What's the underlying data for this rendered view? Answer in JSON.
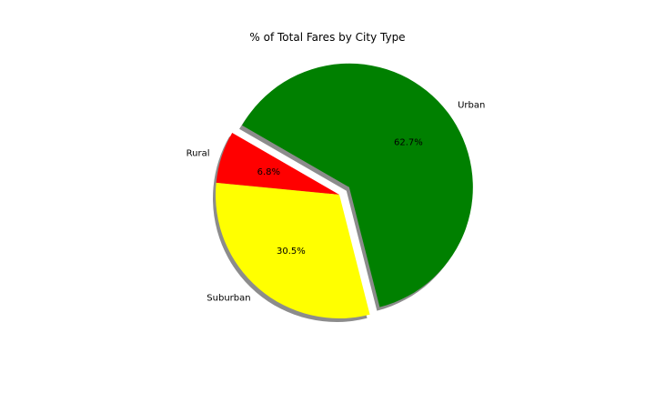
{
  "chart_data": {
    "type": "pie",
    "title": "% of Total Fares by City Type",
    "categories": [
      "Rural",
      "Suburban",
      "Urban"
    ],
    "values": [
      6.8,
      30.5,
      62.7
    ],
    "percent_labels": [
      "6.8%",
      "30.5%",
      "62.7%"
    ],
    "colors": [
      "#ff0000",
      "#ffff00",
      "#008000"
    ],
    "exploded": [
      "Urban"
    ],
    "shadow": true,
    "start_angle_deg": 150
  }
}
